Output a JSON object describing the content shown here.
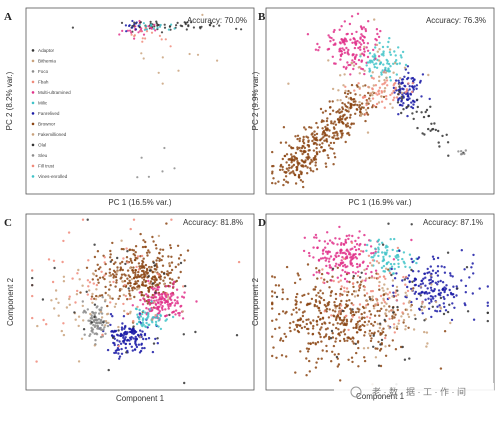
{
  "watermark": {
    "text": "老 · 数 · 据 · 工 · 作 · 间"
  },
  "chart_data": [
    {
      "type": "scatter",
      "panel": "A",
      "accuracy": "Accuracy: 70.0%",
      "xlabel": "PC 1 (16.5% var.)",
      "ylabel": "PC 2 (8.2% var.)",
      "legend_position": "left",
      "legend": [
        "Adaptor",
        "Bithemia",
        "Foco",
        "Fbah",
        "Multi-ultramined",
        "Milic",
        "Fanrelived",
        "Brownor",
        "Fakemillioned",
        "Olal",
        "Sleu",
        "Fill trust",
        "Vines-enrolled"
      ],
      "series": [
        {
          "cluster": "main horizontal band",
          "color": "#333333",
          "n": 60,
          "cx": 0.62,
          "cy": 0.92,
          "sx": 0.14,
          "sy": 0.012
        },
        {
          "cluster": "band magenta",
          "color": "#e0308a",
          "n": 24,
          "cx": 0.52,
          "cy": 0.9,
          "sx": 0.05,
          "sy": 0.03
        },
        {
          "cluster": "band cyan",
          "color": "#3fc3c8",
          "n": 14,
          "cx": 0.55,
          "cy": 0.92,
          "sx": 0.05,
          "sy": 0.015
        },
        {
          "cluster": "band blue",
          "color": "#1a1aa6",
          "n": 10,
          "cx": 0.47,
          "cy": 0.92,
          "sx": 0.03,
          "sy": 0.015
        },
        {
          "cluster": "band salmon",
          "color": "#f08a7a",
          "n": 14,
          "cx": 0.53,
          "cy": 0.85,
          "sx": 0.06,
          "sy": 0.03
        },
        {
          "cluster": "scatter tan",
          "color": "#c9a27c",
          "n": 10,
          "cx": 0.6,
          "cy": 0.7,
          "sx": 0.15,
          "sy": 0.15
        },
        {
          "cluster": "outliers grey",
          "color": "#8c8c8c",
          "n": 6,
          "cx": 0.6,
          "cy": 0.1,
          "sx": 0.1,
          "sy": 0.1
        }
      ]
    },
    {
      "type": "scatter",
      "panel": "B",
      "accuracy": "Accuracy: 76.3%",
      "xlabel": "PC 1 (16.9% var.)",
      "ylabel": "PC 2 (9.9% var.)",
      "series": [
        {
          "cluster": "brown arm",
          "color": "#8b4513",
          "n": 380,
          "line": [
            0.07,
            0.08,
            0.42,
            0.52
          ],
          "spread": 0.045
        },
        {
          "cluster": "magenta",
          "color": "#e0308a",
          "n": 140,
          "cx": 0.37,
          "cy": 0.82,
          "sx": 0.06,
          "sy": 0.07
        },
        {
          "cluster": "cyan",
          "color": "#3fc3c8",
          "n": 70,
          "cx": 0.52,
          "cy": 0.72,
          "sx": 0.05,
          "sy": 0.05
        },
        {
          "cluster": "blue",
          "color": "#1a1aa6",
          "n": 90,
          "cx": 0.62,
          "cy": 0.55,
          "sx": 0.04,
          "sy": 0.06
        },
        {
          "cluster": "salmon",
          "color": "#f08a7a",
          "n": 60,
          "cx": 0.5,
          "cy": 0.55,
          "sx": 0.06,
          "sy": 0.05
        },
        {
          "cluster": "tan",
          "color": "#c9a27c",
          "n": 60,
          "cx": 0.45,
          "cy": 0.6,
          "sx": 0.1,
          "sy": 0.12
        },
        {
          "cluster": "tail",
          "color": "#333333",
          "n": 40,
          "line": [
            0.55,
            0.55,
            0.82,
            0.25
          ],
          "spread": 0.03
        },
        {
          "cluster": "grey",
          "color": "#8c8c8c",
          "n": 6,
          "cx": 0.88,
          "cy": 0.22,
          "sx": 0.01,
          "sy": 0.01
        }
      ]
    },
    {
      "type": "scatter",
      "panel": "C",
      "accuracy": "Accuracy: 81.8%",
      "xlabel": "Component 1",
      "ylabel": "Component 2",
      "series": [
        {
          "cluster": "brown",
          "color": "#8b4513",
          "n": 320,
          "cx": 0.5,
          "cy": 0.66,
          "sx": 0.09,
          "sy": 0.09
        },
        {
          "cluster": "magenta",
          "color": "#e0308a",
          "n": 140,
          "cx": 0.6,
          "cy": 0.5,
          "sx": 0.05,
          "sy": 0.05
        },
        {
          "cluster": "blue",
          "color": "#1a1aa6",
          "n": 140,
          "cx": 0.45,
          "cy": 0.29,
          "sx": 0.05,
          "sy": 0.05
        },
        {
          "cluster": "cyan",
          "color": "#3fc3c8",
          "n": 50,
          "cx": 0.55,
          "cy": 0.4,
          "sx": 0.04,
          "sy": 0.04
        },
        {
          "cluster": "grey",
          "color": "#8c8c8c",
          "n": 90,
          "cx": 0.3,
          "cy": 0.38,
          "sx": 0.03,
          "sy": 0.05
        },
        {
          "cluster": "tan",
          "color": "#c9a27c",
          "n": 80,
          "cx": 0.35,
          "cy": 0.5,
          "sx": 0.15,
          "sy": 0.15
        },
        {
          "cluster": "salmon",
          "color": "#f08a7a",
          "n": 60,
          "cx": 0.3,
          "cy": 0.6,
          "sx": 0.17,
          "sy": 0.17
        },
        {
          "cluster": "dark",
          "color": "#333333",
          "n": 40,
          "cx": 0.45,
          "cy": 0.45,
          "sx": 0.25,
          "sy": 0.22
        }
      ]
    },
    {
      "type": "scatter",
      "panel": "D",
      "accuracy": "Accuracy: 87.1%",
      "xlabel": "Component 1",
      "ylabel": "Component 2",
      "series": [
        {
          "cluster": "brown",
          "color": "#8b4513",
          "n": 420,
          "cx": 0.3,
          "cy": 0.4,
          "sx": 0.15,
          "sy": 0.13
        },
        {
          "cluster": "magenta",
          "color": "#e0308a",
          "n": 170,
          "cx": 0.34,
          "cy": 0.78,
          "sx": 0.08,
          "sy": 0.07
        },
        {
          "cluster": "cyan",
          "color": "#3fc3c8",
          "n": 70,
          "cx": 0.55,
          "cy": 0.76,
          "sx": 0.05,
          "sy": 0.05
        },
        {
          "cluster": "blue",
          "color": "#1a1aa6",
          "n": 170,
          "cx": 0.75,
          "cy": 0.6,
          "sx": 0.09,
          "sy": 0.09
        },
        {
          "cluster": "salmon",
          "color": "#f08a7a",
          "n": 80,
          "cx": 0.45,
          "cy": 0.55,
          "sx": 0.1,
          "sy": 0.1
        },
        {
          "cluster": "tan",
          "color": "#c9a27c",
          "n": 90,
          "cx": 0.55,
          "cy": 0.45,
          "sx": 0.12,
          "sy": 0.12
        },
        {
          "cluster": "dark",
          "color": "#333333",
          "n": 50,
          "cx": 0.6,
          "cy": 0.5,
          "sx": 0.2,
          "sy": 0.18
        }
      ]
    }
  ]
}
